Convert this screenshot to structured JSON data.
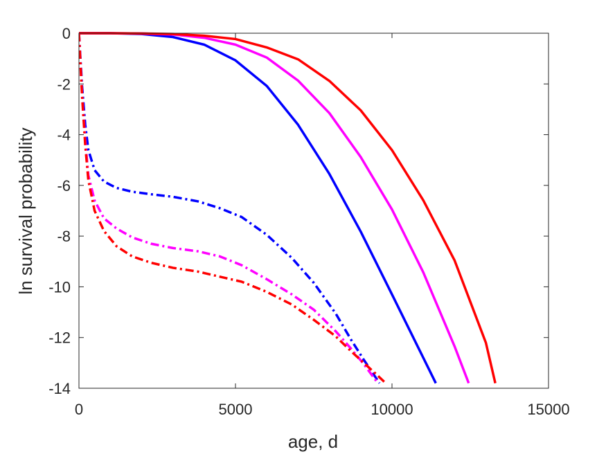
{
  "chart_data": {
    "type": "line",
    "title": "",
    "xlabel": "age, d",
    "ylabel": "ln survival probability",
    "xlim": [
      0,
      15000
    ],
    "ylim": [
      -14,
      0
    ],
    "xticks": [
      0,
      5000,
      10000,
      15000
    ],
    "xtick_labels": [
      "0",
      "5000",
      "10000",
      "15000"
    ],
    "yticks": [
      0,
      -2,
      -4,
      -6,
      -8,
      -10,
      -12,
      -14
    ],
    "ytick_labels": [
      "0",
      "-2",
      "-4",
      "-6",
      "-8",
      "-10",
      "-12",
      "-14"
    ],
    "grid": false,
    "legend": "none",
    "series": [
      {
        "color": "#0000ff",
        "style": "solid",
        "x": [
          0,
          1000,
          2000,
          3000,
          4000,
          5000,
          6000,
          7000,
          8000,
          9000,
          10000,
          11000,
          11400
        ],
        "y": [
          0,
          0,
          -0.03,
          -0.15,
          -0.45,
          -1.07,
          -2.08,
          -3.61,
          -5.55,
          -7.82,
          -10.3,
          -12.8,
          -13.8
        ]
      },
      {
        "color": "#ff00ff",
        "style": "solid",
        "x": [
          0,
          1000,
          2000,
          3000,
          4000,
          5000,
          6000,
          7000,
          8000,
          9000,
          10000,
          11000,
          12000,
          12450
        ],
        "y": [
          0,
          0,
          -0.01,
          -0.05,
          -0.18,
          -0.45,
          -0.96,
          -1.87,
          -3.15,
          -4.88,
          -6.95,
          -9.43,
          -12.35,
          -13.8
        ]
      },
      {
        "color": "#ff0000",
        "style": "solid",
        "x": [
          0,
          1000,
          2000,
          3000,
          4000,
          5000,
          6000,
          7000,
          8000,
          9000,
          10000,
          11000,
          12000,
          13000,
          13300
        ],
        "y": [
          0,
          0,
          -0.01,
          -0.03,
          -0.1,
          -0.23,
          -0.56,
          -1.03,
          -1.88,
          -3.04,
          -4.61,
          -6.59,
          -8.96,
          -12.21,
          -13.8
        ]
      },
      {
        "color": "#0000ff",
        "style": "dashdot",
        "x": [
          0,
          100,
          200,
          300,
          500,
          800,
          1200,
          1700,
          2300,
          3000,
          3800,
          4500,
          5200,
          6000,
          6800,
          7500,
          8200,
          8700,
          9100,
          9400,
          9600
        ],
        "y": [
          0,
          -2.1,
          -3.6,
          -4.6,
          -5.4,
          -5.85,
          -6.1,
          -6.25,
          -6.35,
          -6.45,
          -6.63,
          -6.9,
          -7.25,
          -7.95,
          -8.86,
          -9.84,
          -11.05,
          -12.1,
          -12.88,
          -13.43,
          -13.8
        ]
      },
      {
        "color": "#ff00ff",
        "style": "dashdot",
        "x": [
          0,
          100,
          200,
          300,
          500,
          800,
          1200,
          1700,
          2300,
          3000,
          3800,
          4500,
          5200,
          6000,
          6800,
          7500,
          8200,
          8700,
          9100,
          9400,
          9550
        ],
        "y": [
          0,
          -2.4,
          -4.2,
          -5.6,
          -6.6,
          -7.3,
          -7.7,
          -8.05,
          -8.3,
          -8.47,
          -8.6,
          -8.8,
          -9.15,
          -9.7,
          -10.3,
          -10.9,
          -11.75,
          -12.45,
          -13.05,
          -13.55,
          -13.8
        ]
      },
      {
        "color": "#ff0000",
        "style": "dashdot",
        "x": [
          0,
          100,
          200,
          300,
          500,
          800,
          1200,
          1700,
          2300,
          3000,
          3800,
          4500,
          5200,
          6000,
          6800,
          7500,
          8200,
          8700,
          9100,
          9500,
          9800
        ],
        "y": [
          0,
          -2.5,
          -4.4,
          -5.8,
          -7.0,
          -7.8,
          -8.4,
          -8.8,
          -9.05,
          -9.25,
          -9.4,
          -9.6,
          -9.8,
          -10.2,
          -10.7,
          -11.3,
          -11.95,
          -12.55,
          -13.0,
          -13.45,
          -13.8
        ]
      }
    ]
  }
}
